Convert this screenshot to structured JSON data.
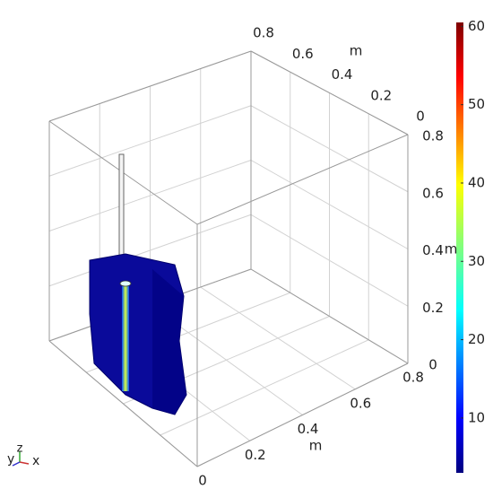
{
  "chart_data": {
    "type": "volume3d",
    "xlabel": "m",
    "ylabel": "m",
    "zlabel": "m",
    "xticks": [
      0,
      0.2,
      0.4,
      0.6,
      0.8
    ],
    "xlim": [
      0,
      0.8
    ],
    "yticks": [
      0,
      0.2,
      0.4,
      0.6,
      0.8
    ],
    "ylim": [
      0,
      0.8
    ],
    "zticks": [
      0,
      0.2,
      0.4,
      0.6,
      0.8
    ],
    "zlim": [
      0,
      0.8
    ],
    "grid": true,
    "colorbar": {
      "lim": [
        3,
        60.5
      ],
      "ticks": [
        10,
        20,
        30,
        40,
        50,
        60
      ]
    },
    "triad_labels": [
      "y",
      "z",
      "x"
    ]
  }
}
